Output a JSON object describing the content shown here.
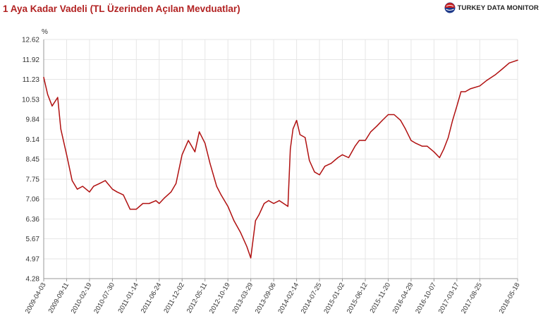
{
  "header": {
    "title": "1 Aya Kadar Vadeli (TL Üzerinden Açılan Mevduatlar)",
    "brand": "TURKEY DATA MONITOR"
  },
  "colors": {
    "title": "#b22222",
    "line": "#b01010",
    "grid": "#e6e6e6",
    "axis": "#999999"
  },
  "chart_data": {
    "type": "line",
    "title": "1 Aya Kadar Vadeli (TL Üzerinden Açılan Mevduatlar)",
    "xlabel": "",
    "ylabel": "%",
    "grid": true,
    "legend": "none",
    "ylim": [
      4.28,
      12.62
    ],
    "y_ticks": [
      "12.62",
      "11.92",
      "11.23",
      "10.53",
      "9.84",
      "9.14",
      "8.45",
      "7.75",
      "7.06",
      "6.36",
      "5.67",
      "4.97",
      "4.28"
    ],
    "x_ticks": [
      "2009-04-03",
      "2009-09-11",
      "2010-02-19",
      "2010-07-30",
      "2011-01-14",
      "2011-06-24",
      "2011-12-02",
      "2012-05-11",
      "2012-10-19",
      "2013-03-29",
      "2013-09-06",
      "2014-02-14",
      "2014-07-25",
      "2015-01-02",
      "2015-06-12",
      "2015-11-20",
      "2016-04-29",
      "2016-10-07",
      "2017-03-17",
      "2017-08-25",
      "2018-05-18"
    ],
    "series": [
      {
        "x": [
          "2009-04-03",
          "2009-05-01",
          "2009-06-01",
          "2009-07-10",
          "2009-08-01",
          "2009-09-11",
          "2009-10-20",
          "2009-11-25",
          "2010-01-01",
          "2010-02-19",
          "2010-03-20",
          "2010-05-01",
          "2010-06-10",
          "2010-07-30",
          "2010-09-01",
          "2010-10-15",
          "2010-12-01",
          "2011-01-14",
          "2011-03-01",
          "2011-04-15",
          "2011-06-01",
          "2011-06-24",
          "2011-08-01",
          "2011-09-15",
          "2011-10-20",
          "2011-12-02",
          "2012-01-15",
          "2012-03-01",
          "2012-04-01",
          "2012-05-11",
          "2012-06-15",
          "2012-08-01",
          "2012-09-01",
          "2012-10-19",
          "2012-12-01",
          "2013-01-15",
          "2013-03-01",
          "2013-03-29",
          "2013-05-01",
          "2013-05-25",
          "2013-07-01",
          "2013-08-01",
          "2013-09-06",
          "2013-10-15",
          "2013-12-15",
          "2014-01-01",
          "2014-01-20",
          "2014-02-14",
          "2014-03-10",
          "2014-04-15",
          "2014-05-15",
          "2014-06-20",
          "2014-07-25",
          "2014-09-01",
          "2014-10-15",
          "2014-12-01",
          "2015-01-02",
          "2015-02-15",
          "2015-04-01",
          "2015-05-01",
          "2015-06-12",
          "2015-07-20",
          "2015-09-01",
          "2015-10-10",
          "2015-11-20",
          "2016-01-01",
          "2016-02-15",
          "2016-03-20",
          "2016-04-29",
          "2016-06-01",
          "2016-07-15",
          "2016-08-20",
          "2016-10-07",
          "2016-11-15",
          "2016-12-15",
          "2017-01-15",
          "2017-02-15",
          "2017-03-17",
          "2017-04-15",
          "2017-05-15",
          "2017-06-20",
          "2017-08-25",
          "2017-10-15",
          "2017-12-15",
          "2018-02-01",
          "2018-03-20",
          "2018-05-18"
        ],
        "y": [
          11.3,
          10.7,
          10.3,
          10.6,
          9.5,
          8.6,
          7.7,
          7.4,
          7.5,
          7.3,
          7.5,
          7.6,
          7.7,
          7.4,
          7.3,
          7.2,
          6.7,
          6.7,
          6.9,
          6.9,
          7.0,
          6.9,
          7.1,
          7.3,
          7.6,
          8.6,
          9.1,
          8.7,
          9.4,
          9.0,
          8.3,
          7.5,
          7.2,
          6.8,
          6.3,
          5.9,
          5.4,
          5.0,
          6.3,
          6.5,
          6.9,
          7.0,
          6.9,
          7.0,
          6.8,
          8.8,
          9.5,
          9.8,
          9.3,
          9.2,
          8.4,
          8.0,
          7.9,
          8.2,
          8.3,
          8.5,
          8.6,
          8.5,
          8.9,
          9.1,
          9.1,
          9.4,
          9.6,
          9.8,
          10.0,
          10.0,
          9.8,
          9.5,
          9.1,
          9.0,
          8.9,
          8.9,
          8.7,
          8.5,
          8.8,
          9.2,
          9.8,
          10.3,
          10.8,
          10.8,
          10.9,
          11.0,
          11.2,
          11.4,
          11.6,
          11.8,
          11.9
        ]
      }
    ]
  }
}
